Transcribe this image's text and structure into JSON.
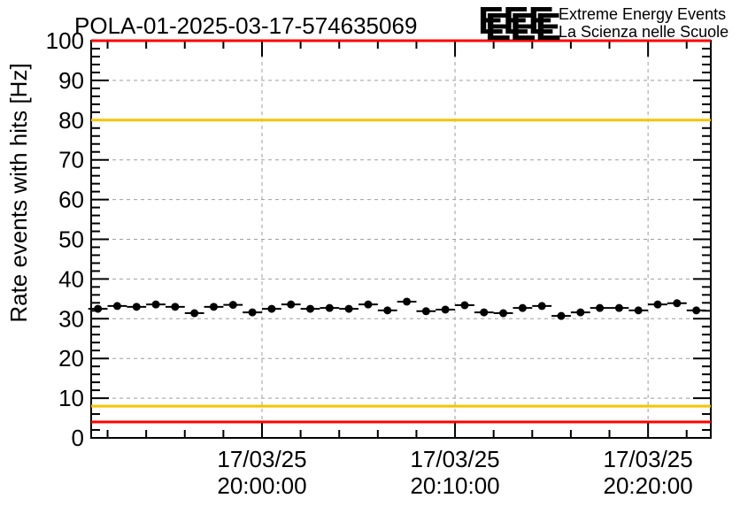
{
  "page": {
    "background": "#ffffff"
  },
  "header": {
    "title": "POLA-01-2025-03-17-574635069",
    "logo": {
      "acronym": "EEE",
      "line1": "Extreme Energy Events",
      "line2": "La Scienza nelle Scuole",
      "color": "#1c1ccd",
      "shadow_color": "#c9c9c9"
    }
  },
  "chart_data": {
    "type": "scatter",
    "title": "POLA-01-2025-03-17-574635069",
    "xlabel": "",
    "ylabel": "Rate events with hits [Hz]",
    "ylim": [
      0,
      100
    ],
    "grid": {
      "show": true,
      "color": "#9e9e9e",
      "dash": "4 4"
    },
    "y_axis": {
      "min": 0,
      "max": 100,
      "major_step": 10,
      "minor_step": 2
    },
    "x_axis": {
      "start": "19:51:09",
      "end": "20:23:15",
      "minor_step_seconds": 120,
      "major_ticks": [
        {
          "date": "17/03/25",
          "time": "20:00:00"
        },
        {
          "date": "17/03/25",
          "time": "20:10:00"
        },
        {
          "date": "17/03/25",
          "time": "20:20:00"
        }
      ]
    },
    "thresholds": [
      {
        "name": "upper-alarm",
        "value": 100,
        "color": "#ff0000"
      },
      {
        "name": "upper-warning",
        "value": 80,
        "color": "#f7c400"
      },
      {
        "name": "lower-warning",
        "value": 8,
        "color": "#f7c400"
      },
      {
        "name": "lower-alarm",
        "value": 4,
        "color": "#ff0000"
      }
    ],
    "series": [
      {
        "name": "rate-events-with-hits",
        "marker": {
          "shape": "filled-circle",
          "color": "#000000",
          "radius": 4.5
        },
        "bin_half_width_seconds": 30,
        "times": [
          "19:51:30",
          "19:52:30",
          "19:53:30",
          "19:54:30",
          "19:55:30",
          "19:56:30",
          "19:57:30",
          "19:58:30",
          "19:59:30",
          "20:00:30",
          "20:01:30",
          "20:02:30",
          "20:03:30",
          "20:04:30",
          "20:05:30",
          "20:06:30",
          "20:07:30",
          "20:08:30",
          "20:09:30",
          "20:10:30",
          "20:11:30",
          "20:12:30",
          "20:13:30",
          "20:14:30",
          "20:15:30",
          "20:16:30",
          "20:17:30",
          "20:18:30",
          "20:19:30",
          "20:20:30",
          "20:21:30",
          "20:22:30"
        ],
        "values": [
          32.5,
          33.2,
          33.0,
          33.6,
          33.0,
          31.4,
          33.0,
          33.5,
          31.6,
          32.5,
          33.6,
          32.5,
          32.7,
          32.5,
          33.6,
          32.1,
          34.3,
          31.9,
          32.3,
          33.4,
          31.6,
          31.4,
          32.7,
          33.2,
          30.7,
          31.6,
          32.7,
          32.7,
          32.1,
          33.6,
          33.9,
          32.1
        ]
      }
    ]
  }
}
